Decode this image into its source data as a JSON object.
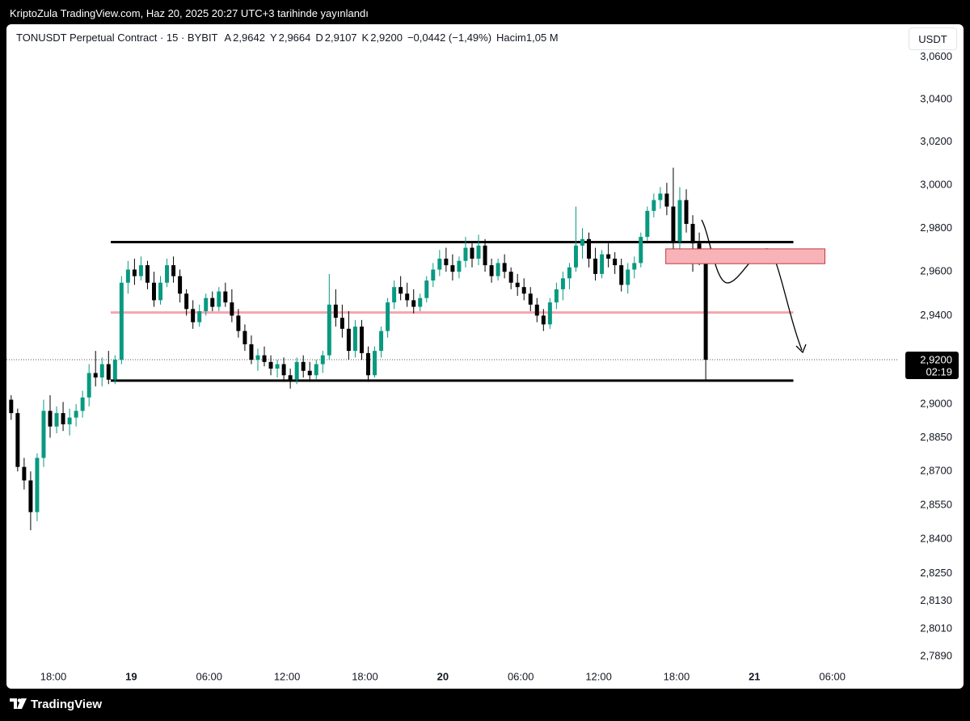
{
  "header": {
    "published": "KriptoZula TradingView.com, Haz 20, 2025 20:27 UTC+3 tarihinde yayınlandı"
  },
  "legend": {
    "symbol": "TONUSDT Perpetual Contract · 15 · BYBIT",
    "fields": [
      {
        "key": "A",
        "value": "2,9642"
      },
      {
        "key": "Y",
        "value": "2,9664"
      },
      {
        "key": "D",
        "value": "2,9107"
      },
      {
        "key": "K",
        "value": "2,9200"
      }
    ],
    "change": "−0,0442 (−1,49%)",
    "volume_label": "Hacim",
    "volume": "1,05 M"
  },
  "currency_button": "USDT",
  "footer": {
    "brand": "TradingView"
  },
  "chart_data": {
    "type": "candlestick",
    "log_scale": true,
    "grid": false,
    "up_color": "#089981",
    "down_color": "#000000",
    "xlim": [
      13.89,
      83
    ],
    "ylim": [
      2.7856,
      3.0755
    ],
    "xticks": [
      {
        "value": 18,
        "label": "18:00"
      },
      {
        "value": 24,
        "label": "19"
      },
      {
        "value": 30,
        "label": "06:00"
      },
      {
        "value": 36,
        "label": "12:00"
      },
      {
        "value": 42,
        "label": "18:00"
      },
      {
        "value": 48,
        "label": "20"
      },
      {
        "value": 54,
        "label": "06:00"
      },
      {
        "value": 60,
        "label": "12:00"
      },
      {
        "value": 66,
        "label": "18:00"
      },
      {
        "value": 72,
        "label": "21"
      },
      {
        "value": 78,
        "label": "06:00"
      }
    ],
    "yticks": [
      {
        "value": 3.06,
        "label": "3,0600"
      },
      {
        "value": 3.04,
        "label": "3,0400"
      },
      {
        "value": 3.02,
        "label": "3,0200"
      },
      {
        "value": 3.0,
        "label": "3,0000"
      },
      {
        "value": 2.98,
        "label": "2,9800"
      },
      {
        "value": 2.96,
        "label": "2,9600"
      },
      {
        "value": 2.94,
        "label": "2,9400"
      },
      {
        "value": 2.9,
        "label": "2,9000"
      },
      {
        "value": 2.885,
        "label": "2,8850"
      },
      {
        "value": 2.87,
        "label": "2,8700"
      },
      {
        "value": 2.855,
        "label": "2,8550"
      },
      {
        "value": 2.84,
        "label": "2,8400"
      },
      {
        "value": 2.825,
        "label": "2,8250"
      },
      {
        "value": 2.813,
        "label": "2,8130"
      },
      {
        "value": 2.801,
        "label": "2,8010"
      },
      {
        "value": 2.789,
        "label": "2,7890"
      }
    ],
    "x": [
      14.75,
      15.25,
      15.75,
      16.25,
      16.75,
      17.25,
      17.75,
      18.25,
      18.75,
      19.25,
      19.75,
      20.25,
      20.75,
      21.25,
      21.75,
      22.25,
      22.75,
      23.25,
      23.75,
      24.25,
      24.75,
      25.25,
      25.75,
      26.25,
      26.75,
      27.25,
      27.75,
      28.25,
      28.75,
      29.25,
      29.75,
      30.25,
      30.75,
      31.25,
      31.75,
      32.25,
      32.75,
      33.25,
      33.75,
      34.25,
      34.75,
      35.25,
      35.75,
      36.25,
      36.75,
      37.25,
      37.75,
      38.25,
      38.75,
      39.25,
      39.75,
      40.25,
      40.75,
      41.25,
      41.75,
      42.25,
      42.75,
      43.25,
      43.75,
      44.25,
      44.75,
      45.25,
      45.75,
      46.25,
      46.75,
      47.25,
      47.75,
      48.25,
      48.75,
      49.25,
      49.75,
      50.25,
      50.75,
      51.25,
      51.75,
      52.25,
      52.75,
      53.25,
      53.75,
      54.25,
      54.75,
      55.25,
      55.75,
      56.25,
      56.75,
      57.25,
      57.75,
      58.25,
      58.75,
      59.25,
      59.75,
      60.25,
      60.75,
      61.25,
      61.75,
      62.25,
      62.75,
      63.25,
      63.75,
      64.25,
      64.75,
      65.25,
      65.75,
      66.25,
      66.75,
      67.25,
      67.75,
      68.25
    ],
    "open": [
      2.902,
      2.896,
      2.872,
      2.866,
      2.852,
      2.876,
      2.897,
      2.89,
      2.896,
      2.891,
      2.894,
      2.897,
      2.903,
      2.914,
      2.912,
      2.918,
      2.911,
      2.92,
      2.955,
      2.961,
      2.958,
      2.963,
      2.955,
      2.947,
      2.955,
      2.963,
      2.958,
      2.95,
      2.943,
      2.937,
      2.942,
      2.948,
      2.944,
      2.951,
      2.946,
      2.94,
      2.933,
      2.927,
      2.92,
      2.922,
      2.919,
      2.916,
      2.918,
      2.913,
      2.911,
      2.919,
      2.915,
      2.913,
      2.918,
      2.922,
      2.945,
      2.939,
      2.934,
      2.924,
      2.935,
      2.923,
      2.913,
      2.924,
      2.933,
      2.946,
      2.953,
      2.95,
      2.947,
      2.944,
      2.948,
      2.956,
      2.961,
      2.966,
      2.963,
      2.96,
      2.965,
      2.971,
      2.966,
      2.972,
      2.963,
      2.958,
      2.964,
      2.96,
      2.955,
      2.953,
      2.95,
      2.945,
      2.94,
      2.936,
      2.946,
      2.952,
      2.957,
      2.962,
      2.972,
      2.975,
      2.966,
      2.959,
      2.968,
      2.966,
      2.963,
      2.954,
      2.961,
      2.964,
      2.976,
      2.988,
      2.993,
      2.996,
      2.99,
      2.974,
      2.993,
      2.982,
      2.973,
      2.9642
    ],
    "high": [
      2.904,
      2.898,
      2.876,
      2.87,
      2.878,
      2.902,
      2.904,
      2.899,
      2.901,
      2.898,
      2.9,
      2.906,
      2.918,
      2.924,
      2.921,
      2.924,
      2.922,
      2.958,
      2.965,
      2.966,
      2.967,
      2.965,
      2.96,
      2.958,
      2.966,
      2.967,
      2.961,
      2.952,
      2.947,
      2.945,
      2.95,
      2.951,
      2.953,
      2.955,
      2.952,
      2.943,
      2.936,
      2.931,
      2.925,
      2.926,
      2.922,
      2.92,
      2.921,
      2.916,
      2.921,
      2.922,
      2.919,
      2.92,
      2.924,
      2.959,
      2.952,
      2.945,
      2.942,
      2.938,
      2.938,
      2.926,
      2.926,
      2.935,
      2.948,
      2.956,
      2.958,
      2.955,
      2.952,
      2.95,
      2.958,
      2.964,
      2.97,
      2.971,
      2.968,
      2.967,
      2.976,
      2.974,
      2.977,
      2.975,
      2.966,
      2.966,
      2.968,
      2.962,
      2.959,
      2.957,
      2.953,
      2.948,
      2.943,
      2.948,
      2.955,
      2.96,
      2.964,
      2.99,
      2.98,
      2.978,
      2.971,
      2.97,
      2.973,
      2.969,
      2.966,
      2.964,
      2.967,
      2.978,
      2.99,
      2.996,
      2.999,
      3.001,
      3.008,
      2.999,
      2.998,
      2.986,
      2.978,
      2.9664
    ],
    "low": [
      2.893,
      2.87,
      2.862,
      2.844,
      2.848,
      2.872,
      2.885,
      2.887,
      2.888,
      2.886,
      2.89,
      2.894,
      2.899,
      2.908,
      2.908,
      2.909,
      2.909,
      2.918,
      2.95,
      2.954,
      2.956,
      2.952,
      2.944,
      2.945,
      2.953,
      2.955,
      2.946,
      2.94,
      2.934,
      2.935,
      2.94,
      2.942,
      2.942,
      2.944,
      2.937,
      2.93,
      2.924,
      2.918,
      2.915,
      2.917,
      2.913,
      2.912,
      2.91,
      2.907,
      2.909,
      2.912,
      2.91,
      2.911,
      2.914,
      2.92,
      2.935,
      2.93,
      2.92,
      2.921,
      2.92,
      2.91,
      2.912,
      2.921,
      2.93,
      2.943,
      2.947,
      2.944,
      2.941,
      2.942,
      2.946,
      2.953,
      2.958,
      2.96,
      2.956,
      2.957,
      2.962,
      2.962,
      2.963,
      2.96,
      2.955,
      2.956,
      2.957,
      2.952,
      2.949,
      2.947,
      2.942,
      2.937,
      2.933,
      2.934,
      2.943,
      2.947,
      2.952,
      2.96,
      2.966,
      2.962,
      2.956,
      2.957,
      2.962,
      2.959,
      2.951,
      2.95,
      2.957,
      2.962,
      2.974,
      2.985,
      2.989,
      2.986,
      2.964,
      2.97,
      2.978,
      2.96,
      2.963,
      2.9107
    ],
    "close": [
      2.896,
      2.872,
      2.866,
      2.852,
      2.876,
      2.897,
      2.89,
      2.896,
      2.891,
      2.894,
      2.897,
      2.903,
      2.914,
      2.912,
      2.918,
      2.911,
      2.92,
      2.955,
      2.961,
      2.958,
      2.963,
      2.955,
      2.947,
      2.955,
      2.963,
      2.958,
      2.95,
      2.943,
      2.937,
      2.942,
      2.948,
      2.944,
      2.951,
      2.946,
      2.94,
      2.933,
      2.927,
      2.92,
      2.922,
      2.919,
      2.916,
      2.918,
      2.913,
      2.911,
      2.919,
      2.915,
      2.913,
      2.918,
      2.922,
      2.945,
      2.939,
      2.934,
      2.924,
      2.935,
      2.923,
      2.913,
      2.924,
      2.933,
      2.946,
      2.953,
      2.95,
      2.947,
      2.944,
      2.948,
      2.956,
      2.961,
      2.966,
      2.963,
      2.96,
      2.965,
      2.971,
      2.966,
      2.972,
      2.963,
      2.958,
      2.964,
      2.96,
      2.955,
      2.953,
      2.95,
      2.945,
      2.94,
      2.936,
      2.946,
      2.952,
      2.957,
      2.962,
      2.972,
      2.975,
      2.966,
      2.959,
      2.968,
      2.966,
      2.963,
      2.954,
      2.961,
      2.964,
      2.976,
      2.988,
      2.993,
      2.996,
      2.99,
      2.974,
      2.993,
      2.982,
      2.973,
      2.9642,
      2.92
    ],
    "last_price": {
      "value": 2.92,
      "label": "2,9200"
    },
    "countdown": "02:19",
    "levels": [
      {
        "price": 2.9736,
        "from": 22.42,
        "to": 75.0,
        "color": "#000000"
      },
      {
        "price": 2.9414,
        "from": 22.42,
        "to": 75.0,
        "color": "#f4a6ad"
      },
      {
        "price": 2.9106,
        "from": 22.42,
        "to": 75.0,
        "color": "#000000"
      }
    ],
    "box": {
      "top": 2.9705,
      "bottom": 2.9637,
      "from": 65.17,
      "to": 77.43,
      "fill": "#f7b3b8",
      "stroke": "#c0393f"
    }
  }
}
